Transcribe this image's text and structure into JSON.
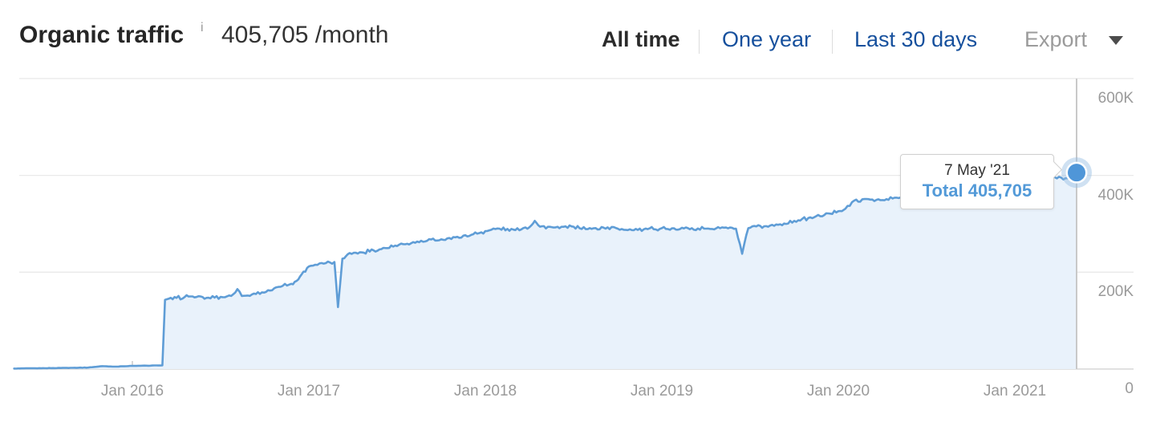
{
  "header": {
    "title": "Organic traffic",
    "info_icon": "i",
    "value": "405,705 /month",
    "tabs": [
      {
        "label": "All time",
        "active": true
      },
      {
        "label": "One year",
        "active": false
      },
      {
        "label": "Last 30 days",
        "active": false
      }
    ],
    "export_label": "Export"
  },
  "tooltip": {
    "date": "7 May '21",
    "total": "Total 405,705"
  },
  "theme": {
    "link_blue": "#16509d",
    "active_tab_color": "#2b2b2b",
    "muted_gray": "#9a9a9a",
    "grid_gray": "#e9e9e9",
    "axis_gray": "#d7d7d7"
  },
  "chart_data": {
    "type": "area",
    "title": "Organic traffic (All time)",
    "series_name": "Total organic traffic per month",
    "x_axis_labels": [
      "Jan 2016",
      "Jan 2017",
      "Jan 2018",
      "Jan 2019",
      "Jan 2020",
      "Jan 2021"
    ],
    "y_axis_labels": [
      "600K",
      "400K",
      "200K",
      "0"
    ],
    "y_gridline_values": [
      600000,
      400000,
      200000,
      0
    ],
    "ylim": [
      0,
      600000
    ],
    "grid": true,
    "legend": false,
    "highlight_point": {
      "date": "7 May '21",
      "value": 405705,
      "x": 2021.35
    },
    "x_is_decimal_year": true,
    "points": [
      [
        2015.33,
        1000
      ],
      [
        2015.45,
        1500
      ],
      [
        2015.55,
        2000
      ],
      [
        2015.65,
        2500
      ],
      [
        2015.75,
        3000
      ],
      [
        2015.83,
        6000
      ],
      [
        2015.9,
        5000
      ],
      [
        2016.0,
        6500
      ],
      [
        2016.08,
        7000
      ],
      [
        2016.17,
        7500
      ],
      [
        2016.185,
        143000
      ],
      [
        2016.25,
        147000
      ],
      [
        2016.33,
        150000
      ],
      [
        2016.42,
        147000
      ],
      [
        2016.5,
        149000
      ],
      [
        2016.56,
        151000
      ],
      [
        2016.595,
        165000
      ],
      [
        2016.62,
        151000
      ],
      [
        2016.7,
        155000
      ],
      [
        2016.78,
        162000
      ],
      [
        2016.84,
        170000
      ],
      [
        2016.9,
        176000
      ],
      [
        2016.93,
        182000
      ],
      [
        2016.96,
        196000
      ],
      [
        2017.0,
        212000
      ],
      [
        2017.06,
        218000
      ],
      [
        2017.12,
        220000
      ],
      [
        2017.145,
        221000
      ],
      [
        2017.165,
        128000
      ],
      [
        2017.19,
        228000
      ],
      [
        2017.22,
        237000
      ],
      [
        2017.3,
        241000
      ],
      [
        2017.4,
        247000
      ],
      [
        2017.5,
        254000
      ],
      [
        2017.58,
        260000
      ],
      [
        2017.67,
        265000
      ],
      [
        2017.75,
        268000
      ],
      [
        2017.83,
        272000
      ],
      [
        2017.92,
        277000
      ],
      [
        2018.0,
        285000
      ],
      [
        2018.08,
        290000
      ],
      [
        2018.17,
        287000
      ],
      [
        2018.25,
        293000
      ],
      [
        2018.28,
        306000
      ],
      [
        2018.31,
        294000
      ],
      [
        2018.42,
        291000
      ],
      [
        2018.5,
        294000
      ],
      [
        2018.58,
        289000
      ],
      [
        2018.67,
        292000
      ],
      [
        2018.75,
        290000
      ],
      [
        2018.83,
        287000
      ],
      [
        2018.92,
        289000
      ],
      [
        2019.0,
        291000
      ],
      [
        2019.08,
        288000
      ],
      [
        2019.17,
        291000
      ],
      [
        2019.25,
        290000
      ],
      [
        2019.33,
        291000
      ],
      [
        2019.42,
        290000
      ],
      [
        2019.455,
        238000
      ],
      [
        2019.49,
        291000
      ],
      [
        2019.58,
        295000
      ],
      [
        2019.67,
        299000
      ],
      [
        2019.75,
        306000
      ],
      [
        2019.83,
        312000
      ],
      [
        2019.92,
        318000
      ],
      [
        2020.0,
        326000
      ],
      [
        2020.04,
        331000
      ],
      [
        2020.09,
        348000
      ],
      [
        2020.17,
        351000
      ],
      [
        2020.25,
        349000
      ],
      [
        2020.33,
        354000
      ],
      [
        2020.42,
        356000
      ],
      [
        2020.5,
        358000
      ],
      [
        2020.58,
        361000
      ],
      [
        2020.67,
        363000
      ],
      [
        2020.75,
        366000
      ],
      [
        2020.83,
        369000
      ],
      [
        2020.92,
        373000
      ],
      [
        2021.0,
        383000
      ],
      [
        2021.08,
        388000
      ],
      [
        2021.17,
        392000
      ],
      [
        2021.25,
        397000
      ],
      [
        2021.3,
        394000
      ],
      [
        2021.35,
        405705
      ]
    ],
    "colors": {
      "line": "#5f9dd6",
      "fill": "#e9f2fb",
      "marker": "#4f96d8",
      "marker_halo": "rgba(149,188,227,0.45)",
      "crosshair": "#c9c9c9"
    }
  }
}
